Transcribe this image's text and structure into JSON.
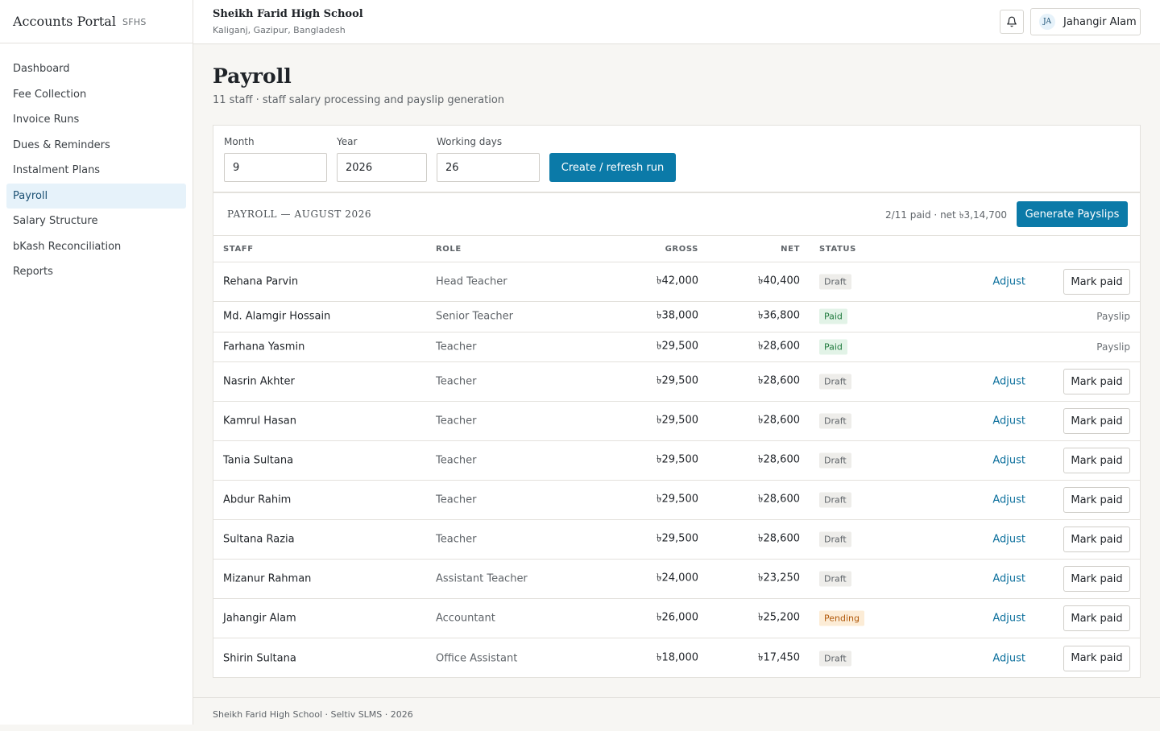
{
  "brand": {
    "title": "Accounts Portal",
    "tag": "SFHS"
  },
  "sidebar": {
    "items": [
      {
        "label": "Dashboard",
        "active": false
      },
      {
        "label": "Fee Collection",
        "active": false
      },
      {
        "label": "Invoice Runs",
        "active": false
      },
      {
        "label": "Dues & Reminders",
        "active": false
      },
      {
        "label": "Instalment Plans",
        "active": false
      },
      {
        "label": "Payroll",
        "active": true
      },
      {
        "label": "Salary Structure",
        "active": false
      },
      {
        "label": "bKash Reconciliation",
        "active": false
      },
      {
        "label": "Reports",
        "active": false
      }
    ]
  },
  "header": {
    "school_name": "Sheikh Farid High School",
    "school_location": "Kaliganj, Gazipur, Bangladesh",
    "notifications_icon": "bell-icon",
    "user": {
      "initials": "JA",
      "name": "Jahangir Alam"
    }
  },
  "page": {
    "title": "Payroll",
    "subtitle": "11 staff · staff salary processing and payslip generation"
  },
  "controls": {
    "month_label": "Month",
    "month_value": "9",
    "year_label": "Year",
    "year_value": "2026",
    "working_days_label": "Working days",
    "working_days_value": "26",
    "run_button": "Create / refresh run"
  },
  "payroll": {
    "title": "PAYROLL — AUGUST 2026",
    "summary": "2/11 paid · net ৳3,14,700",
    "generate_button": "Generate Payslips",
    "columns": {
      "staff": "STAFF",
      "role": "ROLE",
      "gross": "GROSS",
      "net": "NET",
      "status": "STATUS"
    },
    "actions": {
      "adjust": "Adjust",
      "mark_paid": "Mark paid",
      "payslip": "Payslip"
    },
    "rows": [
      {
        "staff": "Rehana Parvin",
        "role": "Head Teacher",
        "gross": "৳42,000",
        "net": "৳40,400",
        "status": "Draft"
      },
      {
        "staff": "Md. Alamgir Hossain",
        "role": "Senior Teacher",
        "gross": "৳38,000",
        "net": "৳36,800",
        "status": "Paid"
      },
      {
        "staff": "Farhana Yasmin",
        "role": "Teacher",
        "gross": "৳29,500",
        "net": "৳28,600",
        "status": "Paid"
      },
      {
        "staff": "Nasrin Akhter",
        "role": "Teacher",
        "gross": "৳29,500",
        "net": "৳28,600",
        "status": "Draft"
      },
      {
        "staff": "Kamrul Hasan",
        "role": "Teacher",
        "gross": "৳29,500",
        "net": "৳28,600",
        "status": "Draft"
      },
      {
        "staff": "Tania Sultana",
        "role": "Teacher",
        "gross": "৳29,500",
        "net": "৳28,600",
        "status": "Draft"
      },
      {
        "staff": "Abdur Rahim",
        "role": "Teacher",
        "gross": "৳29,500",
        "net": "৳28,600",
        "status": "Draft"
      },
      {
        "staff": "Sultana Razia",
        "role": "Teacher",
        "gross": "৳29,500",
        "net": "৳28,600",
        "status": "Draft"
      },
      {
        "staff": "Mizanur Rahman",
        "role": "Assistant Teacher",
        "gross": "৳24,000",
        "net": "৳23,250",
        "status": "Draft"
      },
      {
        "staff": "Jahangir Alam",
        "role": "Accountant",
        "gross": "৳26,000",
        "net": "৳25,200",
        "status": "Pending"
      },
      {
        "staff": "Shirin Sultana",
        "role": "Office Assistant",
        "gross": "৳18,000",
        "net": "৳17,450",
        "status": "Draft"
      }
    ]
  },
  "footer": {
    "text": "Sheikh Farid High School · Seltiv SLMS · 2026"
  }
}
